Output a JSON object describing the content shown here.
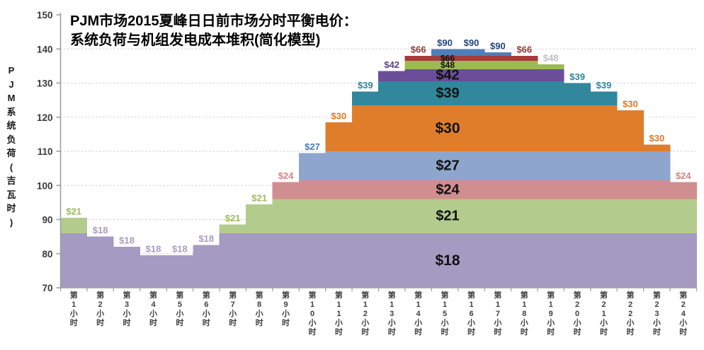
{
  "title": {
    "line1": "PJM市场2015夏峰日日前市场分时平衡电价：",
    "line2": "系统负荷与机组发电成本堆积(简化模型)"
  },
  "y_axis": {
    "label": "PJM系统负荷(吉瓦时)",
    "ticks": [
      150,
      140,
      130,
      120,
      110,
      100,
      90,
      80,
      70
    ]
  },
  "chart_data": {
    "type": "area",
    "subtype": "stacked-step-generation-cost-stack",
    "title": "PJM市场2015夏峰日日前市场分时平衡电价：系统负荷与机组发电成本堆积(简化模型)",
    "xlabel": "",
    "ylabel": "PJM系统负荷(吉瓦时)",
    "ylim": [
      70,
      150
    ],
    "grid": true,
    "legend": "none",
    "categories": [
      "第1小时",
      "第2小时",
      "第3小时",
      "第4小时",
      "第5小时",
      "第6小时",
      "第7小时",
      "第8小时",
      "第9小时",
      "第10小时",
      "第11小时",
      "第12小时",
      "第13小时",
      "第14小时",
      "第15小时",
      "第16小时",
      "第17小时",
      "第18小时",
      "第19小时",
      "第20小时",
      "第21小时",
      "第22小时",
      "第23小时",
      "第24小时"
    ],
    "hourly_load_gw": [
      90.5,
      85,
      82,
      79.5,
      79.5,
      82.5,
      88.5,
      94.5,
      101,
      109.5,
      118.5,
      127.5,
      133.5,
      138,
      140,
      140,
      139,
      138,
      135.5,
      130,
      127.5,
      122,
      112,
      101
    ],
    "hourly_marginal_price": [
      "$21",
      "$18",
      "$18",
      "$18",
      "$18",
      "$18",
      "$21",
      "$21",
      "$24",
      "$27",
      "$30",
      "$39",
      "$42",
      "$66",
      "$90",
      "$90",
      "$90",
      "$66",
      "$48",
      "$39",
      "$39",
      "$30",
      "$30",
      "$24"
    ],
    "supply_tiers": [
      {
        "price": "$18",
        "cumulative_cap_gw": 86,
        "color": "#A49AC2",
        "label_color": "#A79CC4",
        "band_label": true
      },
      {
        "price": "$21",
        "cumulative_cap_gw": 96,
        "color": "#B3CC8E",
        "label_color": "#9CBB61",
        "band_label": true
      },
      {
        "price": "$24",
        "cumulative_cap_gw": 101.5,
        "color": "#D18E90",
        "label_color": "#CE8789",
        "band_label": true
      },
      {
        "price": "$27",
        "cumulative_cap_gw": 110,
        "color": "#8EA6CE",
        "label_color": "#4A79B8",
        "band_label": true
      },
      {
        "price": "$30",
        "cumulative_cap_gw": 123.5,
        "color": "#E07D2B",
        "label_color": "#DE7A23",
        "band_label": true
      },
      {
        "price": "$39",
        "cumulative_cap_gw": 130.5,
        "color": "#31879C",
        "label_color": "#2E8798",
        "band_label": true
      },
      {
        "price": "$42",
        "cumulative_cap_gw": 134,
        "color": "#6A4E9A",
        "label_color": "#5C4483",
        "band_label": true
      },
      {
        "price": "$48",
        "cumulative_cap_gw": 136.5,
        "color": "#9BBB52",
        "label_color": "#BFBFBF",
        "band_label": true
      },
      {
        "price": "$66",
        "cumulative_cap_gw": 138,
        "color": "#A63A3E",
        "label_color": "#953735",
        "band_label": true
      },
      {
        "price": "$90",
        "cumulative_cap_gw": 145,
        "color": "#4E7FBA",
        "label_color": "#234579",
        "band_label": false
      }
    ]
  }
}
